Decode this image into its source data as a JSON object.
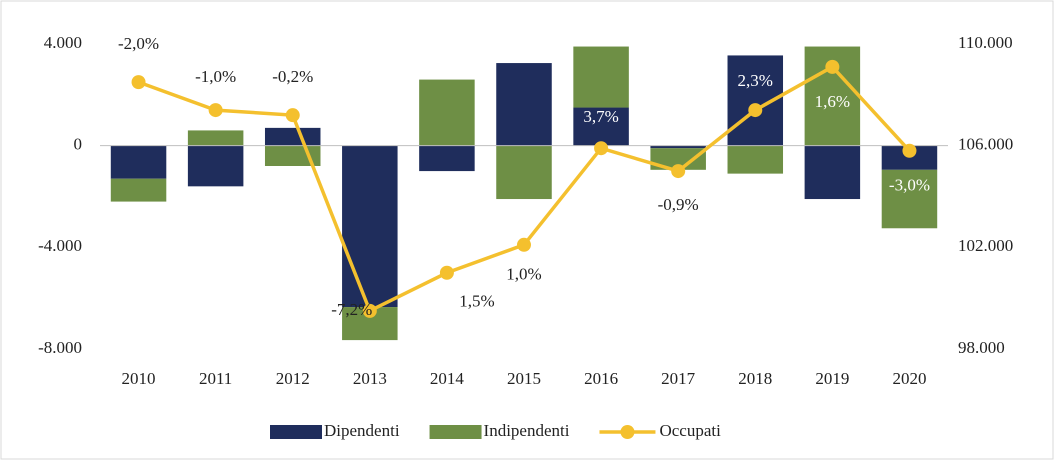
{
  "chart_data": {
    "type": "bar-line",
    "categories": [
      "2010",
      "2011",
      "2012",
      "2013",
      "2014",
      "2015",
      "2016",
      "2017",
      "2018",
      "2019",
      "2020"
    ],
    "series": [
      {
        "name": "Dipendenti",
        "color": "#1f2d5c",
        "type": "bar",
        "values": [
          -1300,
          -1600,
          700,
          -6350,
          -1000,
          3250,
          1500,
          -100,
          3550,
          -2100,
          -950
        ]
      },
      {
        "name": "Indipendenti",
        "color": "#6e8f45",
        "type": "bar",
        "values": [
          -900,
          600,
          -800,
          -1300,
          2600,
          -2100,
          2400,
          -850,
          -1100,
          3900,
          -2300
        ]
      },
      {
        "name": "Occupati",
        "color": "#f4c02e",
        "type": "line",
        "axis": "y2",
        "values": [
          108500,
          107400,
          107200,
          99500,
          101000,
          102100,
          105900,
          105000,
          107400,
          109100,
          105800
        ],
        "point_labels": [
          "-2,0%",
          "-1,0%",
          "-0,2%",
          "-7,2%",
          "1,5%",
          "1,0%",
          "3,7%",
          "-0,9%",
          "2,3%",
          "1,6%",
          "-3,0%"
        ]
      }
    ],
    "ylim": [
      -8000,
      4000
    ],
    "yticks": [
      {
        "value": -8000,
        "label": "-8.000"
      },
      {
        "value": -4000,
        "label": "-4.000"
      },
      0,
      {
        "value": 4000,
        "label": "4.000"
      }
    ],
    "y2lim": [
      98000,
      110000
    ],
    "y2ticks": [
      {
        "value": 98000,
        "label": "98.000"
      },
      {
        "value": 102000,
        "label": "102.000"
      },
      {
        "value": 106000,
        "label": "106.000"
      },
      {
        "value": 110000,
        "label": "110.000"
      }
    ],
    "legend": "bottom"
  }
}
